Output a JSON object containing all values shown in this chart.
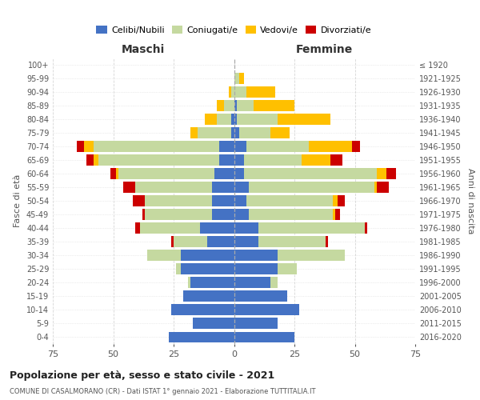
{
  "age_groups": [
    "0-4",
    "5-9",
    "10-14",
    "15-19",
    "20-24",
    "25-29",
    "30-34",
    "35-39",
    "40-44",
    "45-49",
    "50-54",
    "55-59",
    "60-64",
    "65-69",
    "70-74",
    "75-79",
    "80-84",
    "85-89",
    "90-94",
    "95-99",
    "100+"
  ],
  "birth_years": [
    "2016-2020",
    "2011-2015",
    "2006-2010",
    "2001-2005",
    "1996-2000",
    "1991-1995",
    "1986-1990",
    "1981-1985",
    "1976-1980",
    "1971-1975",
    "1966-1970",
    "1961-1965",
    "1956-1960",
    "1951-1955",
    "1946-1950",
    "1941-1945",
    "1936-1940",
    "1931-1935",
    "1926-1930",
    "1921-1925",
    "≤ 1920"
  ],
  "male": {
    "celibi": [
      27,
      17,
      26,
      21,
      18,
      22,
      22,
      11,
      14,
      9,
      9,
      9,
      8,
      6,
      6,
      1,
      1,
      0,
      0,
      0,
      0
    ],
    "coniugati": [
      0,
      0,
      0,
      0,
      1,
      2,
      14,
      14,
      25,
      28,
      28,
      32,
      40,
      50,
      52,
      14,
      6,
      4,
      1,
      0,
      0
    ],
    "vedovi": [
      0,
      0,
      0,
      0,
      0,
      0,
      0,
      0,
      0,
      0,
      0,
      0,
      1,
      2,
      4,
      3,
      5,
      3,
      1,
      0,
      0
    ],
    "divorziati": [
      0,
      0,
      0,
      0,
      0,
      0,
      0,
      1,
      2,
      1,
      5,
      5,
      2,
      3,
      3,
      0,
      0,
      0,
      0,
      0,
      0
    ]
  },
  "female": {
    "nubili": [
      25,
      18,
      27,
      22,
      15,
      18,
      18,
      10,
      10,
      6,
      5,
      6,
      4,
      4,
      5,
      2,
      1,
      1,
      0,
      0,
      0
    ],
    "coniugate": [
      0,
      0,
      0,
      0,
      3,
      8,
      28,
      28,
      44,
      35,
      36,
      52,
      55,
      24,
      26,
      13,
      17,
      7,
      5,
      2,
      0
    ],
    "vedove": [
      0,
      0,
      0,
      0,
      0,
      0,
      0,
      0,
      0,
      1,
      2,
      1,
      4,
      12,
      18,
      8,
      22,
      17,
      12,
      2,
      0
    ],
    "divorziate": [
      0,
      0,
      0,
      0,
      0,
      0,
      0,
      1,
      1,
      2,
      3,
      5,
      4,
      5,
      3,
      0,
      0,
      0,
      0,
      0,
      0
    ]
  },
  "colors": {
    "celibi": "#4472c4",
    "coniugati": "#c5d9a0",
    "vedovi": "#ffc000",
    "divorziati": "#cc0000"
  },
  "title": "Popolazione per età, sesso e stato civile - 2021",
  "subtitle": "COMUNE DI CASALMORANO (CR) - Dati ISTAT 1° gennaio 2021 - Elaborazione TUTTITALIA.IT",
  "xlabel_left": "Maschi",
  "xlabel_right": "Femmine",
  "ylabel_left": "Fasce di età",
  "ylabel_right": "Anni di nascita",
  "xlim": 75,
  "bg_color": "#ffffff",
  "grid_color": "#cccccc",
  "legend_labels": [
    "Celibi/Nubili",
    "Coniugati/e",
    "Vedovi/e",
    "Divorziati/e"
  ]
}
